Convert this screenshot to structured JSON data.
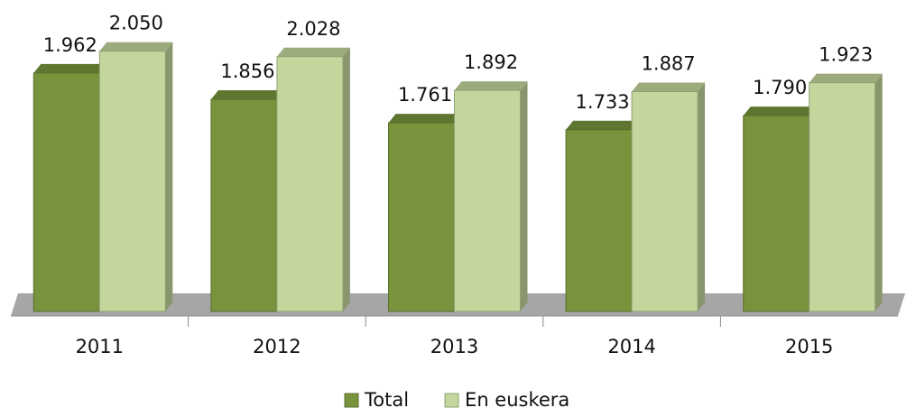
{
  "chart_data": {
    "type": "bar",
    "categories": [
      "2011",
      "2012",
      "2013",
      "2014",
      "2015"
    ],
    "series": [
      {
        "name": "Total",
        "color": "#77933c",
        "values": [
          1962,
          1856,
          1761,
          1733,
          1790
        ],
        "value_labels": [
          "1.962",
          "1.856",
          "1.761",
          "1.733",
          "1.790"
        ]
      },
      {
        "name": "En euskera",
        "color": "#c3d69b",
        "values": [
          2050,
          2028,
          1892,
          1887,
          1923
        ],
        "value_labels": [
          "2.050",
          "2.028",
          "1.892",
          "1.887",
          "1.923"
        ]
      }
    ],
    "ylim": [
      1000,
      2100
    ],
    "legend": "bottom"
  }
}
